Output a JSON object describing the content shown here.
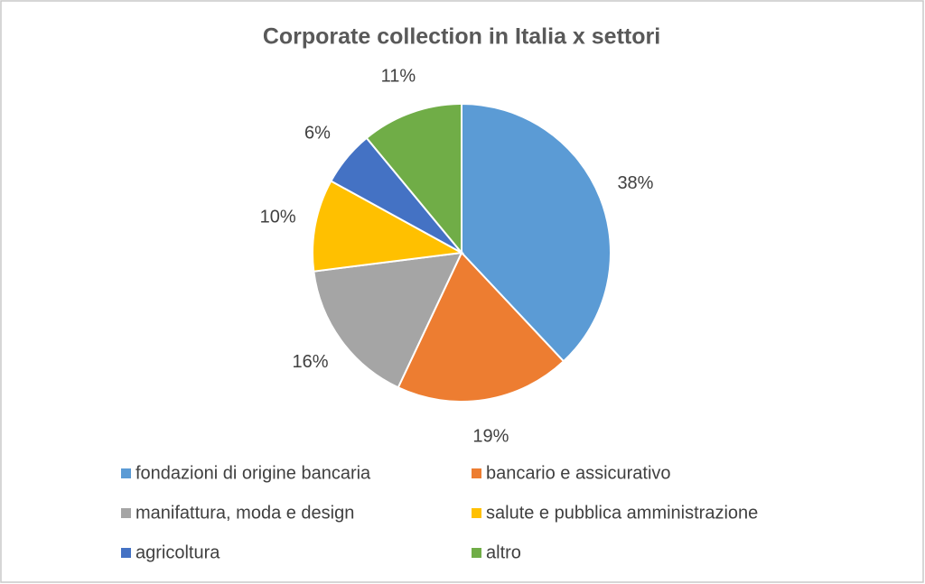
{
  "chart_data": {
    "type": "pie",
    "title": "Corporate collection in Italia x settori",
    "categories": [
      "fondazioni di origine bancaria",
      "bancario e assicurativo",
      "manifattura, moda e design",
      "salute e pubblica amministrazione",
      "agricoltura",
      "altro"
    ],
    "values": [
      38,
      19,
      16,
      10,
      6,
      11
    ],
    "value_labels": [
      "38%",
      "19%",
      "16%",
      "10%",
      "6%",
      "11%"
    ],
    "colors": [
      "#5b9bd5",
      "#ed7d31",
      "#a5a5a5",
      "#ffc000",
      "#4472c4",
      "#70ad47"
    ]
  }
}
